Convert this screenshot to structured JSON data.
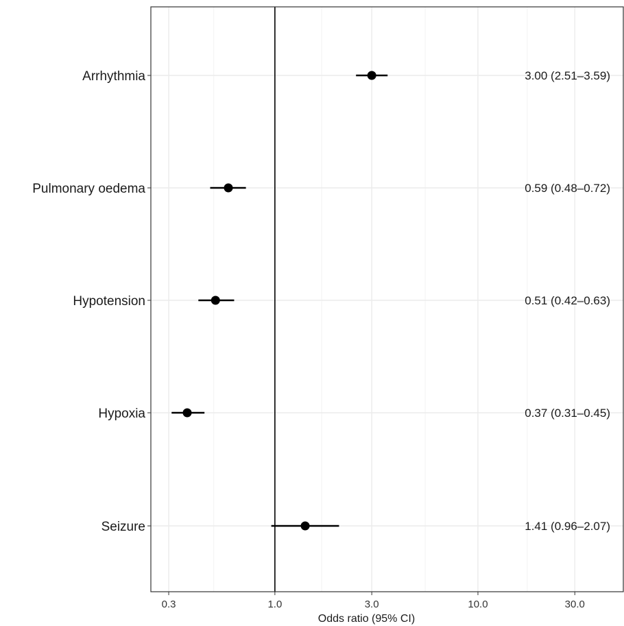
{
  "chart_data": {
    "type": "forest",
    "xlabel": "Odds ratio (95% CI)",
    "xscale": "log",
    "xlim": [
      0.245,
      52
    ],
    "xticks": [
      0.3,
      1.0,
      3.0,
      10.0,
      30.0
    ],
    "xtick_labels": [
      "0.3",
      "1.0",
      "3.0",
      "10.0",
      "30.0"
    ],
    "minor_gridlines": [
      0.5,
      1.7,
      5.5,
      17.5
    ],
    "reference_line": 1.0,
    "grid": true,
    "colors": {
      "point": "#000000",
      "grid": "#ebebeb",
      "frame": "#333333"
    },
    "rows": [
      {
        "label": "Arrhythmia",
        "or": 3.0,
        "lo": 2.51,
        "hi": 3.59,
        "text": "3.00 (2.51–3.59)"
      },
      {
        "label": "Pulmonary oedema",
        "or": 0.59,
        "lo": 0.48,
        "hi": 0.72,
        "text": "0.59 (0.48–0.72)"
      },
      {
        "label": "Hypotension",
        "or": 0.51,
        "lo": 0.42,
        "hi": 0.63,
        "text": "0.51 (0.42–0.63)"
      },
      {
        "label": "Hypoxia",
        "or": 0.37,
        "lo": 0.31,
        "hi": 0.45,
        "text": "0.37 (0.31–0.45)"
      },
      {
        "label": "Seizure",
        "or": 1.41,
        "lo": 0.96,
        "hi": 2.07,
        "text": "1.41 (0.96–2.07)"
      }
    ]
  }
}
